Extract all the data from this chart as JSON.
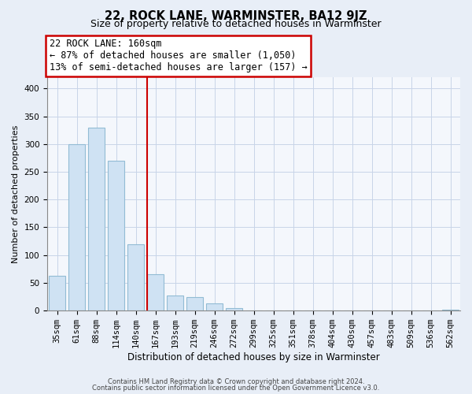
{
  "title": "22, ROCK LANE, WARMINSTER, BA12 9JZ",
  "subtitle": "Size of property relative to detached houses in Warminster",
  "xlabel": "Distribution of detached houses by size in Warminster",
  "ylabel": "Number of detached properties",
  "bar_labels": [
    "35sqm",
    "61sqm",
    "88sqm",
    "114sqm",
    "140sqm",
    "167sqm",
    "193sqm",
    "219sqm",
    "246sqm",
    "272sqm",
    "299sqm",
    "325sqm",
    "351sqm",
    "378sqm",
    "404sqm",
    "430sqm",
    "457sqm",
    "483sqm",
    "509sqm",
    "536sqm",
    "562sqm"
  ],
  "bar_heights": [
    63,
    300,
    330,
    270,
    120,
    65,
    27,
    25,
    13,
    5,
    1,
    1,
    0,
    0,
    0,
    0,
    0,
    0,
    0,
    0,
    2
  ],
  "bar_color": "#cfe2f3",
  "bar_edge_color": "#92bcd4",
  "vline_x": 4.57,
  "property_label": "22 ROCK LANE: 160sqm",
  "annotation_line1": "← 87% of detached houses are smaller (1,050)",
  "annotation_line2": "13% of semi-detached houses are larger (157) →",
  "vline_color": "#cc0000",
  "annotation_box_facecolor": "#ffffff",
  "annotation_box_edgecolor": "#cc0000",
  "ylim": [
    0,
    420
  ],
  "yticks": [
    0,
    50,
    100,
    150,
    200,
    250,
    300,
    350,
    400
  ],
  "footer1": "Contains HM Land Registry data © Crown copyright and database right 2024.",
  "footer2": "Contains public sector information licensed under the Open Government Licence v3.0.",
  "bg_color": "#e8eef7",
  "plot_bg_color": "#f4f7fc",
  "grid_color": "#c8d4e8",
  "title_fontsize": 10.5,
  "subtitle_fontsize": 9,
  "ylabel_fontsize": 8,
  "xlabel_fontsize": 8.5,
  "tick_fontsize": 7.5,
  "footer_fontsize": 6
}
